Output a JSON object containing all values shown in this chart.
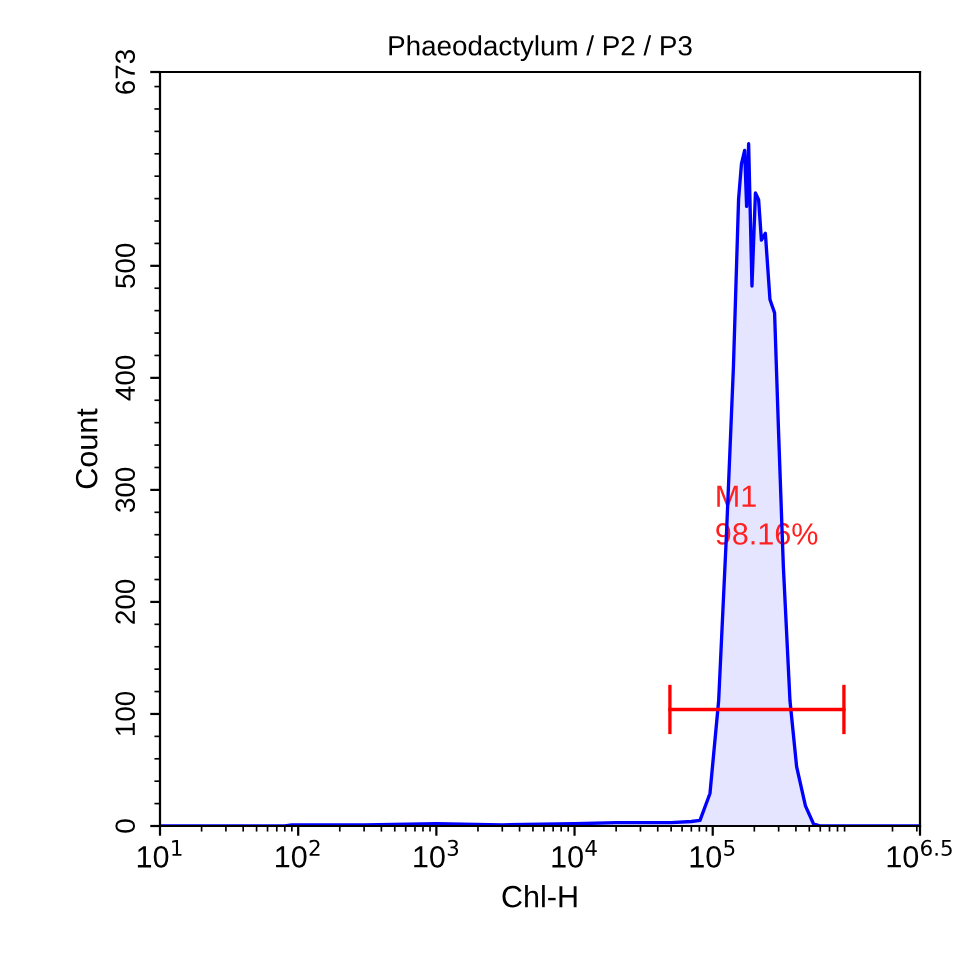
{
  "chart_data": {
    "type": "area",
    "title": "Phaeodactylum / P2 / P3",
    "xlabel": "Chl-H",
    "ylabel": "Count",
    "log": "x",
    "xlim": [
      10,
      3162278
    ],
    "xticks": [
      {
        "value": 10,
        "label": "10$^{1}$"
      },
      {
        "value": 100,
        "label": "10$^{2}$"
      },
      {
        "value": 1000,
        "label": "10$^{3}$"
      },
      {
        "value": 10000,
        "label": "10$^{4}$"
      },
      {
        "value": 100000,
        "label": "10$^{5}$"
      },
      {
        "value": 3162278,
        "label": "10$^{6.5}$"
      }
    ],
    "ylim": [
      0,
      673
    ],
    "yticks": [
      0,
      100,
      200,
      300,
      400,
      500,
      673
    ],
    "grid": false,
    "legend": false,
    "series": [
      {
        "color": "#0000ff",
        "x": [
          10,
          80,
          90,
          300,
          1000,
          3000,
          10000,
          20000,
          50000,
          70000,
          80900,
          95500,
          110400,
          125900,
          141200,
          153800,
          161400,
          170200,
          175900,
          181900,
          192300,
          203700,
          214800,
          225000,
          240400,
          259500,
          280300,
          299900,
          324300,
          362200,
          404600,
          468800,
          535800,
          600000,
          3162278
        ],
        "values": [
          0,
          0,
          1,
          1,
          2,
          1,
          2,
          3,
          3,
          4,
          5,
          29,
          112,
          262,
          410,
          559,
          591,
          603,
          553,
          609,
          482,
          565,
          559,
          523,
          529,
          470,
          458,
          350,
          232,
          112,
          53,
          18,
          2,
          0,
          0
        ]
      },
      {
        "type": "line",
        "color": "#ff0000",
        "marker": "none",
        "x": [
          49000,
          890000
        ],
        "values": [
          104,
          104
        ],
        "errors": [
          22,
          22
        ]
      }
    ],
    "annotations": [
      "M1",
      "98.16%"
    ]
  }
}
